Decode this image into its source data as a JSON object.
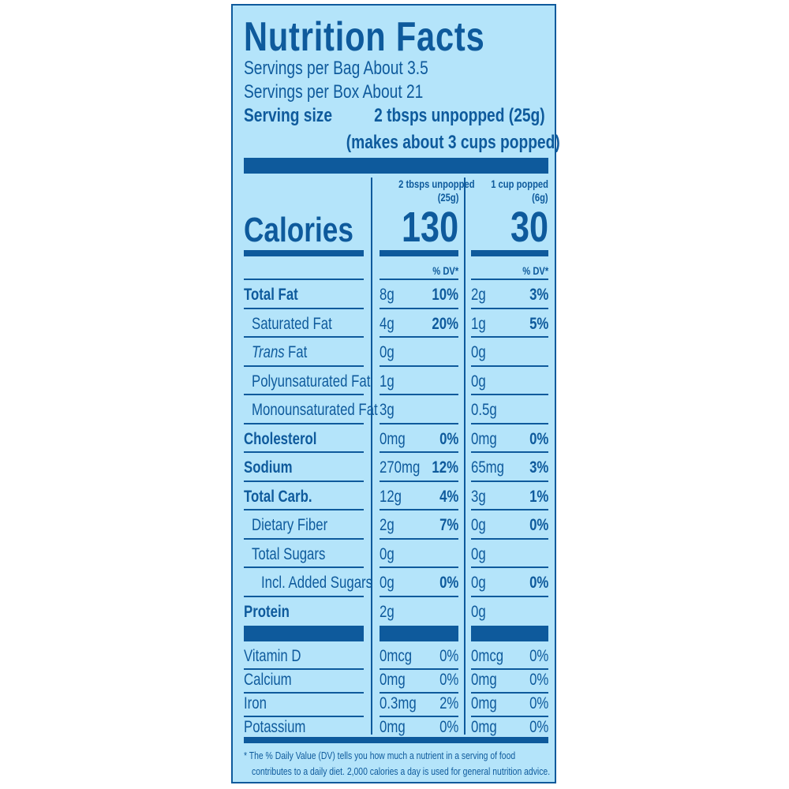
{
  "title": "Nutrition Facts",
  "servings_bag": "Servings per Bag About 3.5",
  "servings_box": "Servings per Box About 21",
  "serving_size_label": "Serving size",
  "serving_size_value": "2 tbsps unpopped (25g)",
  "serving_size_note": "(makes about 3 cups popped)",
  "col1": {
    "head1": "2 tbsps unpopped",
    "head2": "(25g)",
    "calories": "130"
  },
  "col2": {
    "head1": "1 cup popped",
    "head2": "(6g)",
    "calories": "30"
  },
  "calories_label": "Calories",
  "dv_header": "% DV*",
  "nutrients": [
    {
      "label": "Total Fat",
      "c1": "8g",
      "d1": "10%",
      "c2": "2g",
      "d2": "3%"
    },
    {
      "label": "Saturated Fat",
      "c1": "4g",
      "d1": "20%",
      "c2": "1g",
      "d2": "5%"
    },
    {
      "label": "Fat",
      "label_prefix": "Trans",
      "c1": "0g",
      "d1": "",
      "c2": "0g",
      "d2": ""
    },
    {
      "label": "Polyunsaturated Fat",
      "c1": "1g",
      "d1": "",
      "c2": "0g",
      "d2": ""
    },
    {
      "label": "Monounsaturated Fat",
      "c1": "3g",
      "d1": "",
      "c2": "0.5g",
      "d2": ""
    },
    {
      "label": "Cholesterol",
      "c1": "0mg",
      "d1": "0%",
      "c2": "0mg",
      "d2": "0%"
    },
    {
      "label": "Sodium",
      "c1": "270mg",
      "d1": "12%",
      "c2": "65mg",
      "d2": "3%"
    },
    {
      "label": "Total Carb.",
      "c1": "12g",
      "d1": "4%",
      "c2": "3g",
      "d2": "1%"
    },
    {
      "label": "Dietary Fiber",
      "c1": "2g",
      "d1": "7%",
      "c2": "0g",
      "d2": "0%"
    },
    {
      "label": "Total Sugars",
      "c1": "0g",
      "d1": "",
      "c2": "0g",
      "d2": ""
    },
    {
      "label": "Incl. Added Sugars",
      "c1": "0g",
      "d1": "0%",
      "c2": "0g",
      "d2": "0%"
    },
    {
      "label": "Protein",
      "c1": "2g",
      "d1": "",
      "c2": "0g",
      "d2": ""
    }
  ],
  "vitamins": [
    {
      "label": "Vitamin D",
      "c1": "0mcg",
      "d1": "0%",
      "c2": "0mcg",
      "d2": "0%"
    },
    {
      "label": "Calcium",
      "c1": "0mg",
      "d1": "0%",
      "c2": "0mg",
      "d2": "0%"
    },
    {
      "label": "Iron",
      "c1": "0.3mg",
      "d1": "2%",
      "c2": "0mg",
      "d2": "0%"
    },
    {
      "label": "Potassium",
      "c1": "0mg",
      "d1": "0%",
      "c2": "0mg",
      "d2": "0%"
    }
  ],
  "footnote1": "* The % Daily Value (DV) tells you how much a nutrient in a serving of food",
  "footnote2": "contributes to a daily diet. 2,000 calories a day is used for general nutrition advice.",
  "colors": {
    "ink": "#0e5a9c",
    "background": "#b4e4fa"
  }
}
